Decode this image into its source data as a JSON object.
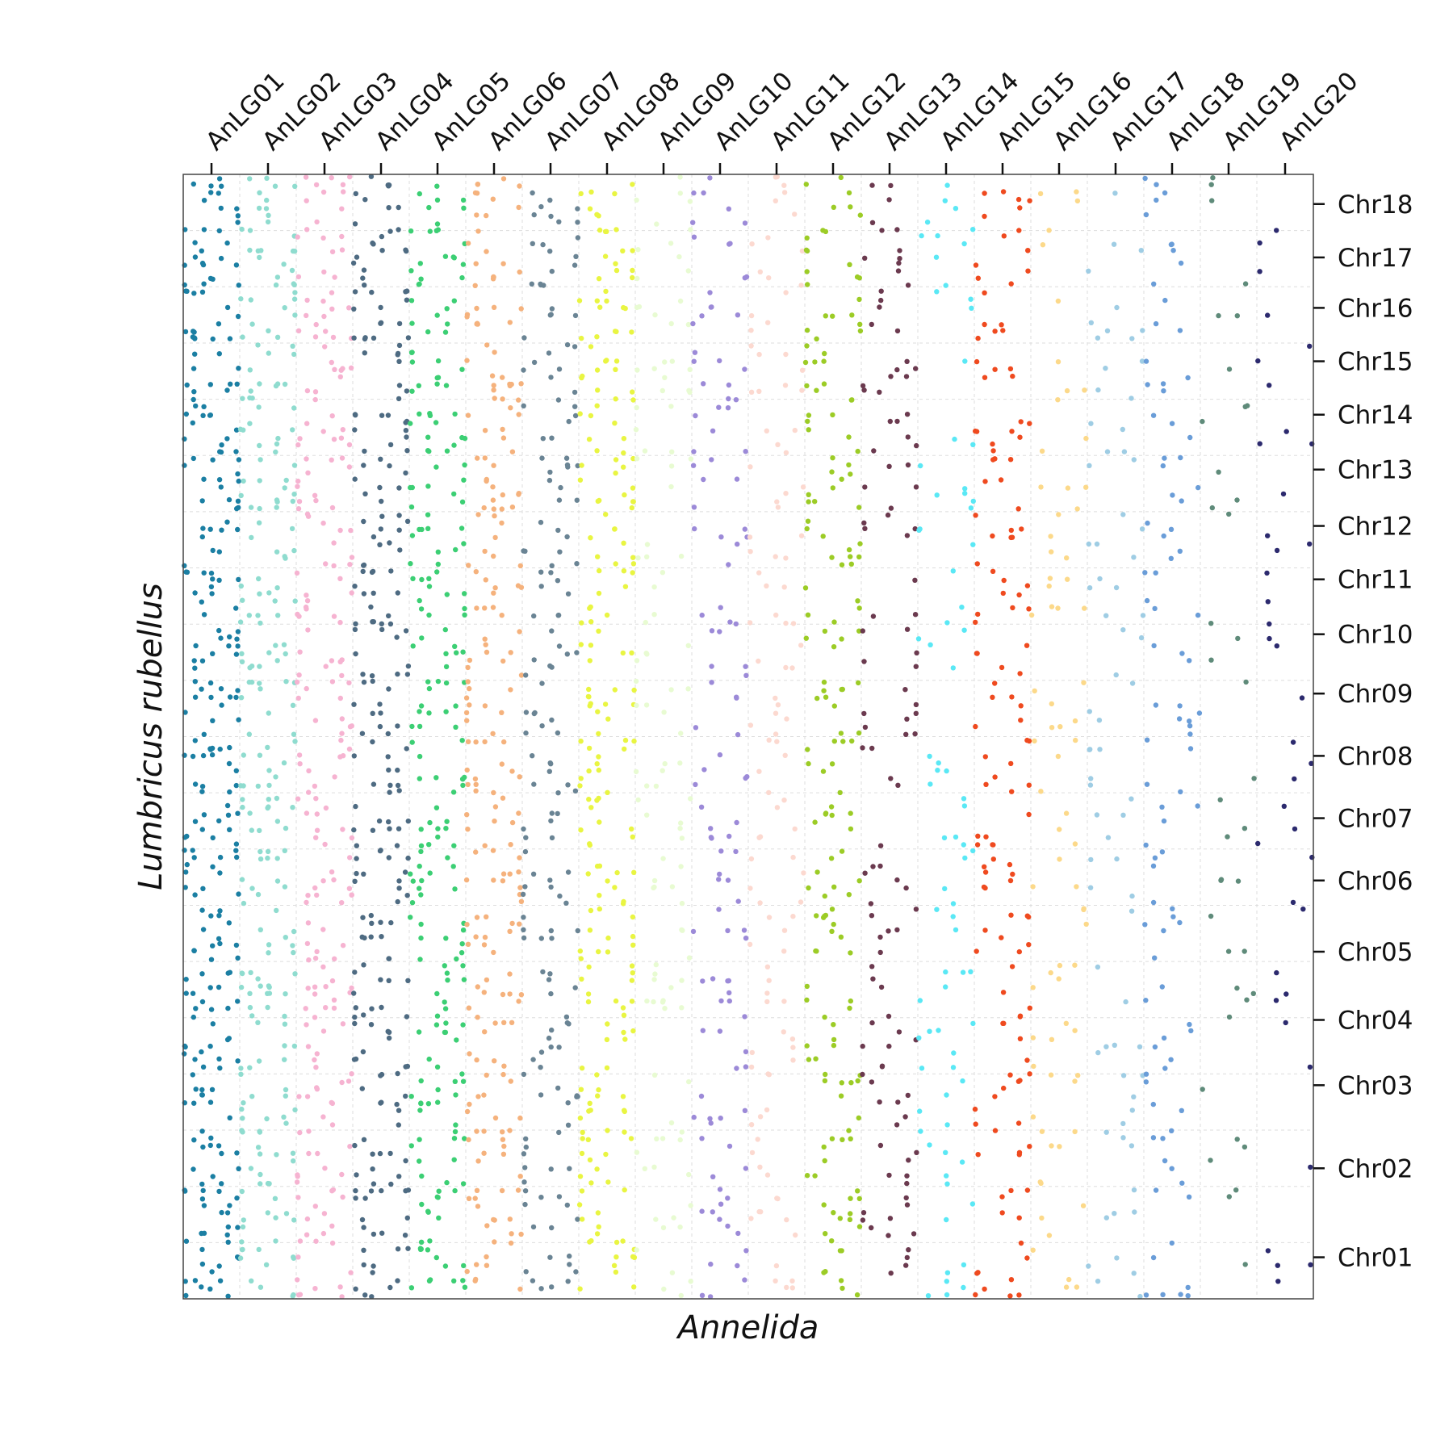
{
  "chart_data": {
    "type": "scatter",
    "title": "",
    "xlabel": "Annelida",
    "ylabel": "Lumbricus rubellus",
    "x_tick_position": "top",
    "y_tick_position": "right",
    "grid": true,
    "legend": "none",
    "x_categories": [
      "AnLG01",
      "AnLG02",
      "AnLG03",
      "AnLG04",
      "AnLG05",
      "AnLG06",
      "AnLG07",
      "AnLG08",
      "AnLG09",
      "AnLG10",
      "AnLG11",
      "AnLG12",
      "AnLG13",
      "AnLG14",
      "AnLG15",
      "AnLG16",
      "AnLG17",
      "AnLG18",
      "AnLG19",
      "AnLG20"
    ],
    "y_categories": [
      "Chr01",
      "Chr02",
      "Chr03",
      "Chr04",
      "Chr05",
      "Chr06",
      "Chr07",
      "Chr08",
      "Chr09",
      "Chr10",
      "Chr11",
      "Chr12",
      "Chr13",
      "Chr14",
      "Chr15",
      "Chr16",
      "Chr17",
      "Chr18"
    ],
    "x_block_sizes": [
      1,
      1,
      1,
      1,
      1,
      1,
      1,
      1,
      1,
      1,
      1,
      1,
      1,
      1,
      1,
      1,
      1,
      1,
      1,
      1
    ],
    "y_block_sizes": [
      1.4,
      1.6,
      1.2,
      1.0,
      1.3,
      1.1,
      1.0,
      1.1,
      1.0,
      1.0,
      0.85,
      0.95,
      0.95,
      0.9,
      0.9,
      0.9,
      0.8,
      1.0
    ],
    "series_colors": [
      "#1b7fa3",
      "#8fdccf",
      "#f6b3d1",
      "#4e6b82",
      "#3ccf74",
      "#f5b27d",
      "#6a8494",
      "#e9f542",
      "#e8fbd2",
      "#9c8ad8",
      "#fcd9d0",
      "#9ccc26",
      "#6b3a4f",
      "#5ae8f5",
      "#ef4a1f",
      "#fcd98a",
      "#9fcde4",
      "#6a9dd8",
      "#5f8b7a",
      "#2c2a6e"
    ],
    "relative_density": [
      1.0,
      0.85,
      0.75,
      0.85,
      0.8,
      0.75,
      0.6,
      0.75,
      0.45,
      0.45,
      0.4,
      0.6,
      0.45,
      0.35,
      0.5,
      0.3,
      0.3,
      0.35,
      0.2,
      0.2
    ],
    "sparse_blocks": {
      "AnLG10": [
        "Chr11"
      ],
      "AnLG09": [
        "Chr03",
        "Chr12"
      ],
      "AnLG13": [
        "Chr11",
        "Chr07"
      ],
      "AnLG14": [
        "Chr09",
        "Chr11",
        "Chr14",
        "Chr15"
      ],
      "AnLG16": [
        "Chr17",
        "Chr16",
        "Chr15"
      ],
      "AnLG17": [
        "Chr05",
        "Chr18"
      ],
      "AnLG19": [
        "Chr01",
        "Chr03",
        "Chr09",
        "Chr11",
        "Chr13",
        "Chr15",
        "Chr17",
        "Chr08"
      ],
      "AnLG20": [
        "Chr02",
        "Chr03",
        "Chr09",
        "Chr14",
        "Chr16",
        "Chr18",
        "Chr05"
      ]
    }
  }
}
